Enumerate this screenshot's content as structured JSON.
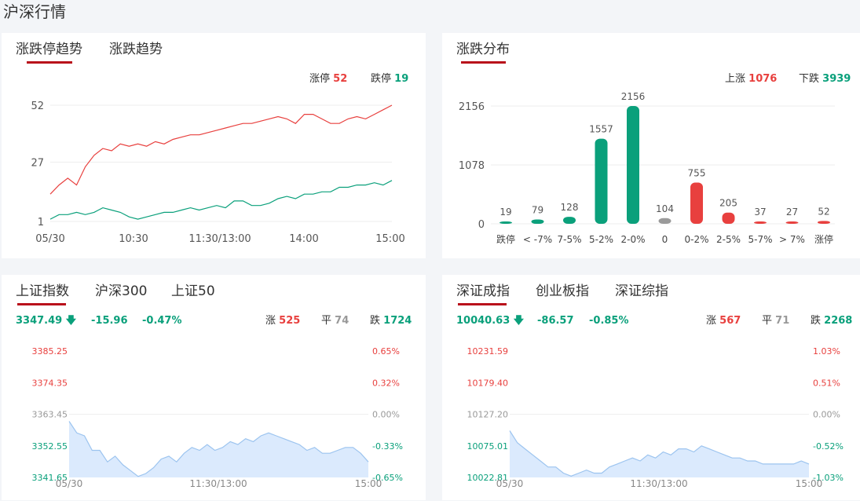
{
  "page_title": "沪深行情",
  "colors": {
    "red": "#e8403e",
    "green": "#0aa07b",
    "gray": "#9a9a9a",
    "tab_underline": "#b9101b"
  },
  "limit_panel": {
    "tabs": [
      "涨跌停趋势",
      "涨跌趋势"
    ],
    "active_tab": 0,
    "stats": {
      "up_label": "涨停",
      "up_value": "52",
      "down_label": "跌停",
      "down_value": "19"
    },
    "chart_data": {
      "type": "line",
      "yticks": [
        "52",
        "27",
        "1"
      ],
      "ylim": [
        1,
        52
      ],
      "xticks": [
        "05/30",
        "10:30",
        "11:30/13:00",
        "14:00",
        "15:00"
      ],
      "series": [
        {
          "color": "#e8403e",
          "values": [
            13,
            17,
            20,
            17,
            25,
            30,
            33,
            32,
            35,
            34,
            35,
            34,
            36,
            35,
            37,
            38,
            39,
            39,
            40,
            41,
            42,
            43,
            44,
            44,
            45,
            46,
            47,
            46,
            44,
            48,
            48,
            46,
            44,
            44,
            46,
            47,
            46,
            48,
            50,
            52
          ]
        },
        {
          "color": "#0aa07b",
          "values": [
            2,
            4,
            4,
            5,
            4,
            5,
            7,
            6,
            5,
            3,
            2,
            3,
            4,
            5,
            5,
            6,
            7,
            6,
            7,
            8,
            7,
            10,
            10,
            8,
            8,
            9,
            11,
            12,
            11,
            13,
            13,
            14,
            14,
            16,
            16,
            17,
            17,
            18,
            17,
            19
          ]
        }
      ]
    }
  },
  "dist_panel": {
    "tabs": [
      "涨跌分布"
    ],
    "active_tab": 0,
    "stats": {
      "up_label": "上涨",
      "up_value": "1076",
      "down_label": "下跌",
      "down_value": "3939"
    },
    "chart_data": {
      "type": "bar",
      "categories": [
        "跌停",
        "< -7%",
        "7-5%",
        "5-2%",
        "2-0%",
        "0",
        "0-2%",
        "2-5%",
        "5-7%",
        "> 7%",
        "涨停"
      ],
      "values": [
        19,
        79,
        128,
        1557,
        2156,
        104,
        755,
        205,
        37,
        27,
        52
      ],
      "value_labels": [
        "19",
        "79",
        "128",
        "1557",
        "2156",
        "104",
        "755",
        "205",
        "37",
        "27",
        "52"
      ],
      "bar_colors": [
        "#0aa07b",
        "#0aa07b",
        "#0aa07b",
        "#0aa07b",
        "#0aa07b",
        "#9a9a9a",
        "#e8403e",
        "#e8403e",
        "#e8403e",
        "#e8403e",
        "#e8403e"
      ],
      "yticks": [
        "2156",
        "1078",
        "0"
      ],
      "ylim": [
        0,
        2156
      ]
    }
  },
  "sh_panel": {
    "tabs": [
      "上证指数",
      "沪深300",
      "上证50"
    ],
    "active_tab": 0,
    "quote": {
      "price": "3347.49",
      "change": "-15.96",
      "pct": "-0.47%"
    },
    "stats": {
      "up_label": "涨",
      "up_value": "525",
      "flat_label": "平",
      "flat_value": "74",
      "down_label": "跌",
      "down_value": "1724"
    },
    "chart_data": {
      "type": "area",
      "left_ticks": [
        "3385.25",
        "3374.35",
        "3363.45",
        "3352.55",
        "3341.65"
      ],
      "right_ticks": [
        "0.65%",
        "0.32%",
        "0.00%",
        "-0.33%",
        "-0.65%"
      ],
      "ylim": [
        3341.65,
        3385.25
      ],
      "xticks": [
        "05/30",
        "11:30/13:00",
        "15:00"
      ],
      "values": [
        3361,
        3357,
        3356,
        3351,
        3351,
        3347,
        3349,
        3346,
        3344,
        3342,
        3343,
        3345,
        3348,
        3349,
        3347,
        3350,
        3352,
        3351,
        3353,
        3351,
        3352,
        3354,
        3353,
        3355,
        3354,
        3356,
        3357,
        3356,
        3355,
        3354,
        3353,
        3351,
        3352,
        3350,
        3350,
        3351,
        3352,
        3352,
        3350,
        3347
      ]
    }
  },
  "sz_panel": {
    "tabs": [
      "深证成指",
      "创业板指",
      "深证综指"
    ],
    "active_tab": 0,
    "quote": {
      "price": "10040.63",
      "change": "-86.57",
      "pct": "-0.85%"
    },
    "stats": {
      "up_label": "涨",
      "up_value": "567",
      "flat_label": "平",
      "flat_value": "71",
      "down_label": "跌",
      "down_value": "2268"
    },
    "chart_data": {
      "type": "area",
      "left_ticks": [
        "10231.59",
        "10179.40",
        "10127.20",
        "10075.01",
        "10022.81"
      ],
      "right_ticks": [
        "1.03%",
        "0.51%",
        "0.00%",
        "-0.52%",
        "-1.03%"
      ],
      "ylim": [
        10022.81,
        10231.59
      ],
      "xticks": [
        "05/30",
        "11:30/13:00",
        "15:00"
      ],
      "values": [
        10100,
        10080,
        10070,
        10060,
        10050,
        10040,
        10040,
        10030,
        10025,
        10030,
        10035,
        10030,
        10030,
        10040,
        10045,
        10050,
        10055,
        10050,
        10060,
        10055,
        10065,
        10060,
        10070,
        10070,
        10065,
        10075,
        10070,
        10065,
        10060,
        10055,
        10055,
        10050,
        10050,
        10045,
        10045,
        10045,
        10045,
        10045,
        10050,
        10045
      ]
    }
  }
}
